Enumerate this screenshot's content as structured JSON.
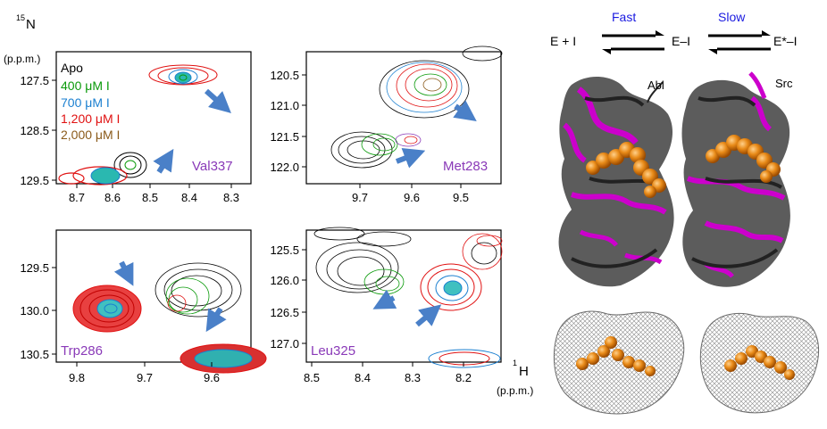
{
  "axes": {
    "n_label_sup": "15",
    "n_label": "N",
    "n_unit": "(p.p.m.)",
    "h_label_sup": "1",
    "h_label": "H",
    "h_unit": "(p.p.m.)"
  },
  "legend": {
    "items": [
      {
        "label": "Apo",
        "color": "#000000"
      },
      {
        "label": "400 μM I",
        "color": "#0a9a0a"
      },
      {
        "label": "700 μM I",
        "color": "#1a7fd0"
      },
      {
        "label": "1,200 μM I",
        "color": "#e01010"
      },
      {
        "label": "2,000 μM I",
        "color": "#8a5a1a"
      }
    ]
  },
  "panels": [
    {
      "residue": "Val337",
      "x_ticks": [
        "8.7",
        "8.6",
        "8.5",
        "8.4",
        "8.3"
      ],
      "y_ticks": [
        "127.5",
        "128.5",
        "129.5"
      ]
    },
    {
      "residue": "Met283",
      "x_ticks": [
        "9.7",
        "9.6",
        "9.5"
      ],
      "y_ticks": [
        "120.5",
        "121.0",
        "121.5",
        "122.0"
      ]
    },
    {
      "residue": "Trp286",
      "x_ticks": [
        "9.8",
        "9.7",
        "9.6"
      ],
      "y_ticks": [
        "129.5",
        "130.0",
        "130.5"
      ]
    },
    {
      "residue": "Leu325",
      "x_ticks": [
        "8.5",
        "8.4",
        "8.3",
        "8.2"
      ],
      "y_ticks": [
        "125.5",
        "126.0",
        "126.5",
        "127.0"
      ]
    }
  ],
  "scheme": {
    "state1": "E + I",
    "state2": "E–I",
    "state3": "E*–I",
    "rate1": "Fast",
    "rate2": "Slow",
    "rate_color": "#1a1ae0"
  },
  "structures": {
    "label_left": "Abl",
    "label_right": "Src",
    "colors": {
      "protein": "#3a3a3a",
      "highlight": "#cc00cc",
      "ligand": "#e07a10",
      "surface": "#9a9a9a"
    }
  }
}
